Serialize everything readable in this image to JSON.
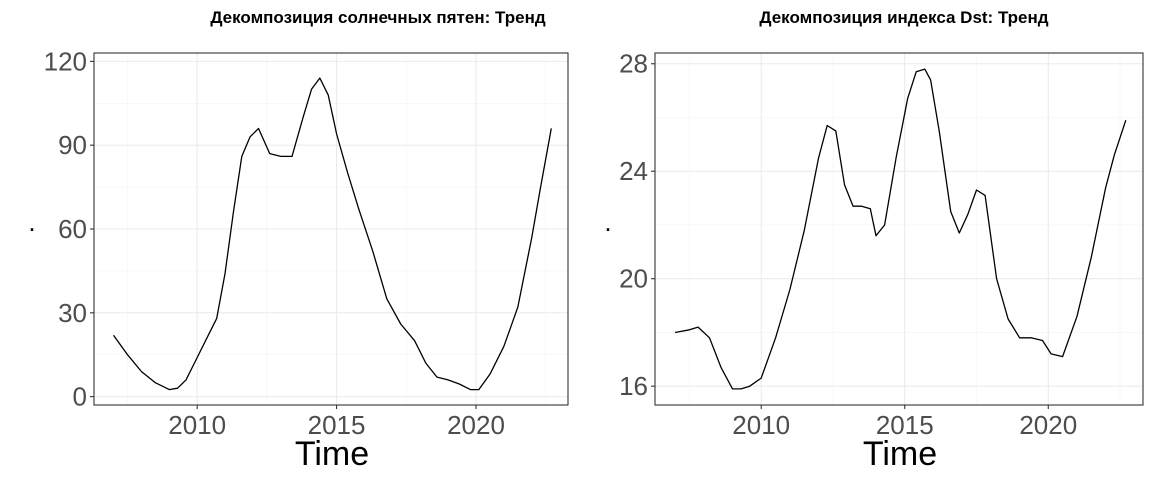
{
  "chart_data": [
    {
      "type": "line",
      "title": "Декомпозиция солнечных пятен: Тренд",
      "xlabel": "Time",
      "ylabel": ".",
      "xlim": [
        2006.3,
        2023.3
      ],
      "ylim": [
        -3,
        123
      ],
      "xticks": [
        2010,
        2015,
        2020
      ],
      "xtick_labels": [
        "2010",
        "2015",
        "2020"
      ],
      "yticks": [
        0,
        30,
        60,
        90,
        120
      ],
      "ytick_labels": [
        "0",
        "30",
        "60",
        "90",
        "120"
      ],
      "grid": true,
      "x": [
        2007.0,
        2007.5,
        2008.0,
        2008.5,
        2009.0,
        2009.3,
        2009.6,
        2010.0,
        2010.4,
        2010.7,
        2011.0,
        2011.3,
        2011.6,
        2011.9,
        2012.2,
        2012.6,
        2013.0,
        2013.4,
        2013.8,
        2014.1,
        2014.4,
        2014.7,
        2015.0,
        2015.4,
        2015.8,
        2016.3,
        2016.8,
        2017.3,
        2017.8,
        2018.2,
        2018.6,
        2019.0,
        2019.4,
        2019.8,
        2020.1,
        2020.5,
        2021.0,
        2021.5,
        2022.0,
        2022.3,
        2022.7
      ],
      "y": [
        22,
        15,
        9,
        5,
        2.5,
        3,
        6,
        14,
        22,
        28,
        44,
        66,
        86,
        93,
        96,
        87,
        86,
        86,
        100,
        110,
        114,
        108,
        94,
        80,
        67,
        52,
        35,
        26,
        20,
        12,
        7,
        6,
        4.5,
        2.5,
        2.5,
        8,
        18,
        32,
        57,
        74,
        96
      ]
    },
    {
      "type": "line",
      "title": "Декомпозиция индекса Dst: Тренд",
      "xlabel": "Time",
      "ylabel": ".",
      "xlim": [
        2006.3,
        2023.3
      ],
      "ylim": [
        15.3,
        28.4
      ],
      "xticks": [
        2010,
        2015,
        2020
      ],
      "xtick_labels": [
        "2010",
        "2015",
        "2020"
      ],
      "yticks": [
        16,
        20,
        24,
        28
      ],
      "ytick_labels": [
        "16",
        "20",
        "24",
        "28"
      ],
      "grid": true,
      "x": [
        2007.0,
        2007.5,
        2007.8,
        2008.2,
        2008.6,
        2009.0,
        2009.3,
        2009.6,
        2010.0,
        2010.5,
        2011.0,
        2011.5,
        2012.0,
        2012.3,
        2012.6,
        2012.9,
        2013.2,
        2013.5,
        2013.8,
        2014.0,
        2014.3,
        2014.7,
        2015.1,
        2015.4,
        2015.7,
        2015.9,
        2016.2,
        2016.6,
        2016.9,
        2017.2,
        2017.5,
        2017.8,
        2018.2,
        2018.6,
        2019.0,
        2019.4,
        2019.8,
        2020.1,
        2020.5,
        2021.0,
        2021.5,
        2022.0,
        2022.3,
        2022.7
      ],
      "y": [
        18.0,
        18.1,
        18.2,
        17.8,
        16.7,
        15.9,
        15.9,
        16.0,
        16.3,
        17.8,
        19.6,
        21.8,
        24.5,
        25.7,
        25.5,
        23.5,
        22.7,
        22.7,
        22.6,
        21.6,
        22.0,
        24.5,
        26.7,
        27.7,
        27.8,
        27.4,
        25.5,
        22.5,
        21.7,
        22.4,
        23.3,
        23.1,
        20.0,
        18.5,
        17.8,
        17.8,
        17.7,
        17.2,
        17.1,
        18.6,
        20.8,
        23.4,
        24.6,
        25.9
      ]
    }
  ]
}
